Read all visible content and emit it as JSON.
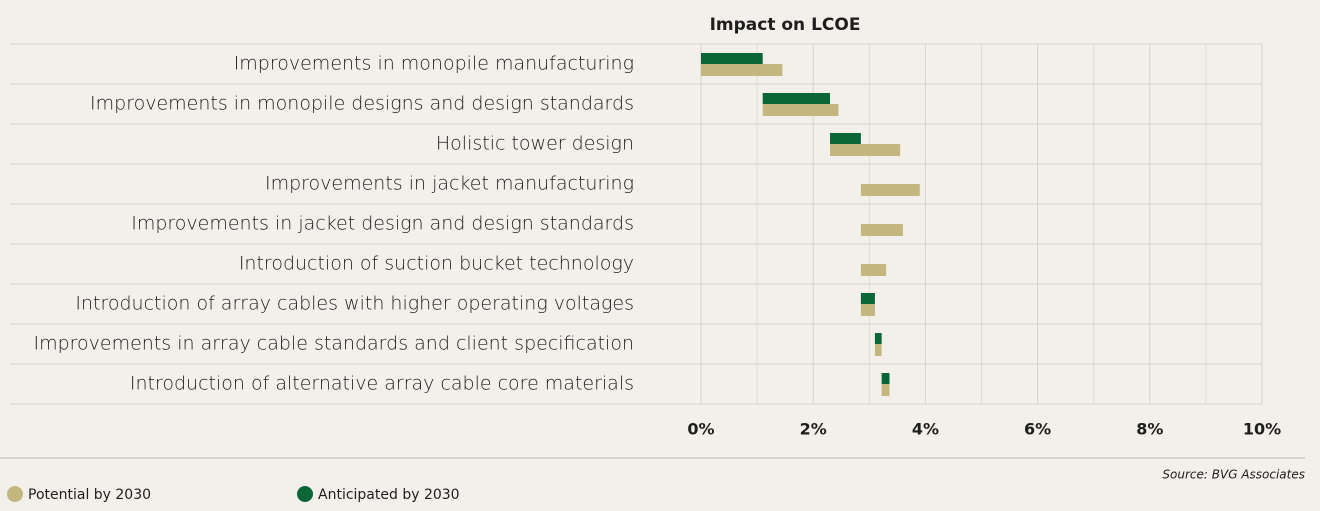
{
  "chart_data": {
    "type": "floating_bar",
    "title": "Impact on LCOE",
    "categories": [
      "Improvements in monopile manufacturing",
      "Improvements in monopile designs and design standards",
      "Holistic tower design",
      "Improvements in jacket manufacturing",
      "Improvements in jacket design and design standards",
      "Introduction of suction bucket technology",
      "Introduction of array cables with higher operating voltages",
      "Improvements in array cable standards and client specification",
      "Introduction of alternative array cable core materials"
    ],
    "series": [
      {
        "name": "Potential by 2030",
        "color": "#c3b67f",
        "values": [
          1.45,
          1.35,
          1.25,
          1.05,
          0.75,
          0.45,
          0.25,
          0.12,
          0.14
        ]
      },
      {
        "name": "Anticipated by 2030",
        "color": "#0a6637",
        "values": [
          1.1,
          1.2,
          0.55,
          0,
          0,
          0,
          0.25,
          0.12,
          0.14
        ]
      }
    ],
    "xlim": [
      0,
      10
    ],
    "xticks": [
      {
        "value": 0,
        "label": "0%"
      },
      {
        "value": 2,
        "label": "2%"
      },
      {
        "value": 4,
        "label": "4%"
      },
      {
        "value": 6,
        "label": "6%"
      },
      {
        "value": 8,
        "label": "8%"
      },
      {
        "value": 10,
        "label": "10%"
      }
    ],
    "x_minor_ticks": [
      1,
      3,
      5,
      7,
      9
    ],
    "grid": true,
    "source": "Source: BVG Associates"
  }
}
